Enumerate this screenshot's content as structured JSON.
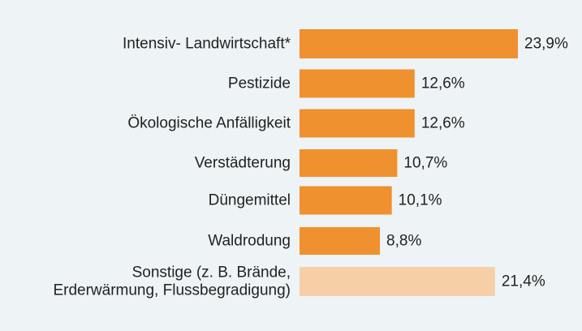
{
  "chart_data": {
    "type": "bar",
    "orientation": "horizontal",
    "unit": "%",
    "categories": [
      [
        "Intensiv- Landwirtschaft*"
      ],
      [
        "Pestizide"
      ],
      [
        "Ökologische Anfälligkeit"
      ],
      [
        "Verstädterung"
      ],
      [
        "Düngemittel"
      ],
      [
        "Waldrodung"
      ],
      [
        "Sonstige (z. B. Brände,",
        "Erderwärmung, Flussbegradigung)"
      ]
    ],
    "values": [
      23.9,
      12.6,
      12.6,
      10.7,
      10.1,
      8.8,
      21.4
    ],
    "value_labels": [
      "23,9%",
      "12,6%",
      "12,6%",
      "10,7%",
      "10,1%",
      "8,8%",
      "21,4%"
    ],
    "highlight": [
      false,
      false,
      false,
      false,
      false,
      false,
      true
    ],
    "title": "",
    "xlabel": "",
    "ylabel": "",
    "xlim": [
      0,
      23.9
    ],
    "grid": false,
    "legend": "none"
  },
  "colors": {
    "background": "#eef3f6",
    "bar": "#f0912f",
    "bar_muted": "#f7cfa7",
    "text": "#222222"
  }
}
